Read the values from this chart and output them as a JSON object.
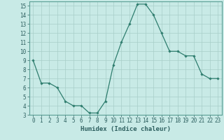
{
  "x": [
    0,
    1,
    2,
    3,
    4,
    5,
    6,
    7,
    8,
    9,
    10,
    11,
    12,
    13,
    14,
    15,
    16,
    17,
    18,
    19,
    20,
    21,
    22,
    23
  ],
  "y": [
    9,
    6.5,
    6.5,
    6,
    4.5,
    4,
    4,
    3.2,
    3.2,
    4.5,
    8.5,
    11,
    13,
    15.2,
    15.2,
    14,
    12,
    10,
    10,
    9.5,
    9.5,
    7.5,
    7,
    7
  ],
  "xlabel": "Humidex (Indice chaleur)",
  "line_color": "#2e7d6e",
  "marker": "D",
  "marker_size": 1.8,
  "bg_color": "#c8eae6",
  "grid_color": "#a8cec8",
  "xlim": [
    -0.5,
    23.5
  ],
  "ylim": [
    3,
    15.5
  ],
  "yticks": [
    3,
    4,
    5,
    6,
    7,
    8,
    9,
    10,
    11,
    12,
    13,
    14,
    15
  ],
  "xticks": [
    0,
    1,
    2,
    3,
    4,
    5,
    6,
    7,
    8,
    9,
    10,
    11,
    12,
    13,
    14,
    15,
    16,
    17,
    18,
    19,
    20,
    21,
    22,
    23
  ],
  "tick_fontsize": 5.5,
  "xlabel_fontsize": 6.5,
  "border_color": "#2e7d6e",
  "spine_color": "#5a9e94"
}
